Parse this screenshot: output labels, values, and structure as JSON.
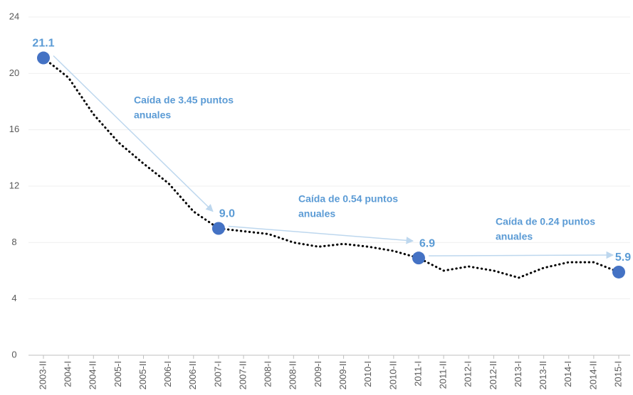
{
  "chart_data": {
    "type": "line",
    "categories": [
      "2003-II",
      "2004-I",
      "2004-II",
      "2005-I",
      "2005-II",
      "2006-I",
      "2006-II",
      "2007-I",
      "2007-II",
      "2008-I",
      "2008-II",
      "2009-I",
      "2009-II",
      "2010-I",
      "2010-II",
      "2011-I",
      "2011-II",
      "2012-I",
      "2012-II",
      "2013-I",
      "2013-II",
      "2014-I",
      "2014-II",
      "2015-I"
    ],
    "values": [
      21.1,
      19.7,
      17.1,
      15.1,
      13.6,
      12.2,
      10.2,
      9.0,
      8.8,
      8.6,
      8.0,
      7.7,
      7.9,
      7.7,
      7.4,
      6.9,
      6.0,
      6.3,
      6.0,
      5.5,
      6.2,
      6.6,
      6.6,
      5.9
    ],
    "value_labels": [
      "21.1",
      null,
      null,
      null,
      null,
      null,
      null,
      "9.0",
      null,
      null,
      null,
      null,
      null,
      null,
      null,
      "6.9",
      null,
      null,
      null,
      null,
      null,
      null,
      null,
      "5.9"
    ],
    "color": "#000000",
    "marker_color": "#4472c4",
    "ylim": [
      0,
      24
    ],
    "yticks": [
      0,
      4,
      8,
      12,
      16,
      20,
      24
    ],
    "grid": true,
    "annotations": [
      {
        "lines": [
          "Caída de 3.45 puntos",
          "anuales"
        ]
      },
      {
        "lines": [
          "Caída de 0.54 puntos",
          "anuales"
        ]
      },
      {
        "lines": [
          "Caída de 0.24 puntos",
          "anuales"
        ]
      }
    ]
  }
}
